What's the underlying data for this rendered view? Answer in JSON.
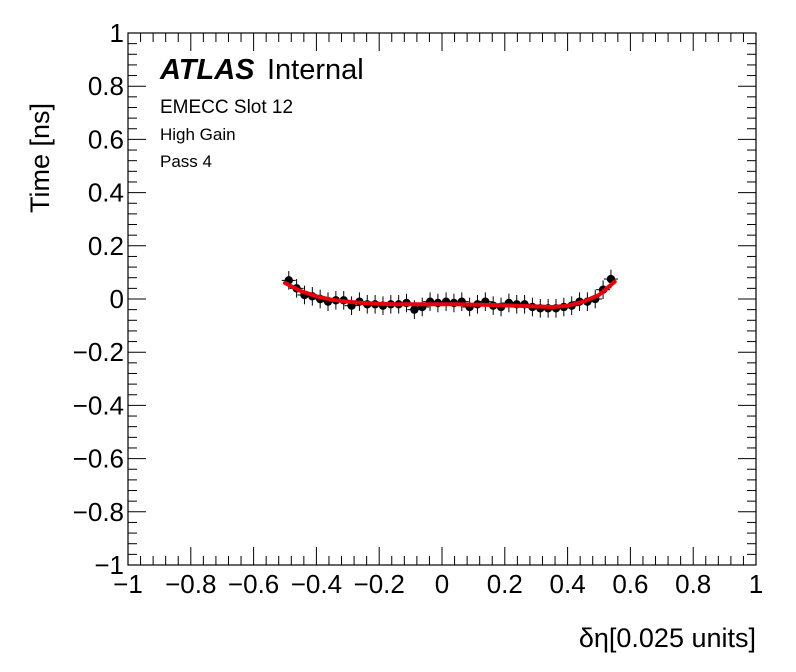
{
  "chart_data": {
    "type": "scatter",
    "xlabel": "δη[0.025 units]",
    "ylabel": "Time [ns]",
    "xlim": [
      -1,
      1
    ],
    "ylim": [
      -1,
      1
    ],
    "x_ticks": [
      "−1",
      "−0.8",
      "−0.6",
      "−0.4",
      "−0.2",
      "0",
      "0.2",
      "0.4",
      "0.6",
      "0.8",
      "1"
    ],
    "y_ticks": [
      "−1",
      "−0.8",
      "−0.6",
      "−0.4",
      "−0.2",
      "0",
      "0.2",
      "0.4",
      "0.6",
      "0.8",
      "1"
    ],
    "annotations": {
      "atlas": "ATLAS",
      "internal": "Internal",
      "line1": "EMECC Slot 12",
      "line2": "High Gain",
      "line3": "Pass 4"
    },
    "points": {
      "x": [
        -0.488,
        -0.463,
        -0.438,
        -0.413,
        -0.388,
        -0.363,
        -0.338,
        -0.313,
        -0.288,
        -0.263,
        -0.238,
        -0.213,
        -0.188,
        -0.163,
        -0.138,
        -0.113,
        -0.088,
        -0.063,
        -0.038,
        -0.013,
        0.013,
        0.038,
        0.063,
        0.088,
        0.113,
        0.138,
        0.163,
        0.188,
        0.213,
        0.238,
        0.263,
        0.288,
        0.313,
        0.338,
        0.363,
        0.388,
        0.413,
        0.438,
        0.463,
        0.488,
        0.513,
        0.538
      ],
      "y": [
        0.07,
        0.04,
        0.015,
        0.01,
        0.0,
        -0.01,
        -0.005,
        -0.005,
        -0.025,
        -0.01,
        -0.02,
        -0.02,
        -0.025,
        -0.02,
        -0.02,
        -0.015,
        -0.04,
        -0.03,
        -0.01,
        -0.015,
        -0.01,
        -0.015,
        -0.01,
        -0.03,
        -0.02,
        -0.01,
        -0.025,
        -0.03,
        -0.015,
        -0.02,
        -0.02,
        -0.03,
        -0.035,
        -0.035,
        -0.035,
        -0.03,
        -0.025,
        -0.01,
        -0.01,
        0.0,
        0.035,
        0.075
      ],
      "err": 0.035,
      "color": "#000000"
    },
    "fit": {
      "x": [
        -0.5,
        -0.45,
        -0.4,
        -0.35,
        -0.3,
        -0.25,
        -0.2,
        -0.15,
        -0.1,
        -0.05,
        0.0,
        0.05,
        0.1,
        0.15,
        0.2,
        0.25,
        0.3,
        0.35,
        0.4,
        0.45,
        0.5,
        0.55
      ],
      "y": [
        0.06,
        0.03,
        0.01,
        -0.003,
        -0.01,
        -0.015,
        -0.018,
        -0.02,
        -0.02,
        -0.02,
        -0.02,
        -0.02,
        -0.021,
        -0.022,
        -0.024,
        -0.026,
        -0.028,
        -0.03,
        -0.025,
        -0.01,
        0.015,
        0.065
      ],
      "color": "#e8000b"
    }
  }
}
